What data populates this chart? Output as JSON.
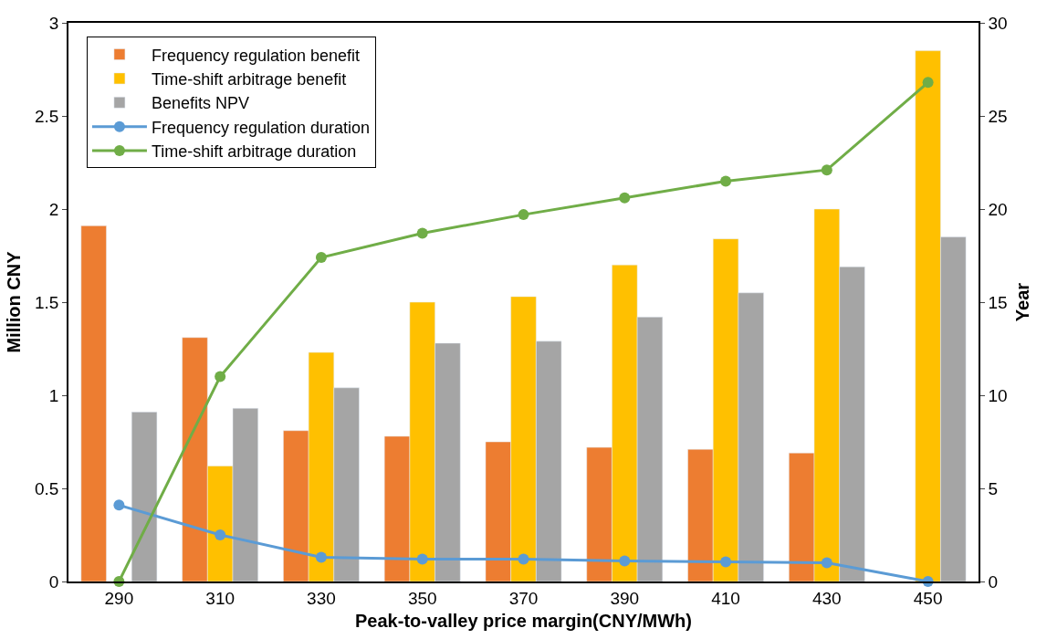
{
  "chart_data": {
    "type": "bar",
    "xlabel": "Peak-to-valley price margin(CNY/MWh)",
    "ylabel": "Million CNY",
    "y2label": "Year",
    "categories": [
      "290",
      "310",
      "330",
      "350",
      "370",
      "390",
      "410",
      "430",
      "450"
    ],
    "series": [
      {
        "name": "Frequency regulation benefit",
        "color": "#ed7d31",
        "values": [
          1.91,
          1.31,
          0.81,
          0.78,
          0.75,
          0.72,
          0.71,
          0.69,
          null
        ]
      },
      {
        "name": "Time-shift arbitrage benefit",
        "color": "#ffc000",
        "values": [
          null,
          0.62,
          1.23,
          1.5,
          1.53,
          1.7,
          1.84,
          2.0,
          2.85
        ]
      },
      {
        "name": "Benefits NPV",
        "color": "#a5a5a5",
        "values": [
          0.91,
          0.93,
          1.04,
          1.28,
          1.29,
          1.42,
          1.55,
          1.69,
          1.85
        ]
      },
      {
        "name": "Frequency regulation duration",
        "color": "#5b9bd5",
        "type": "line",
        "axis": "y2",
        "marker": "circle",
        "values": [
          4.1,
          2.5,
          1.3,
          1.2,
          1.2,
          1.1,
          1.05,
          1.0,
          0
        ]
      },
      {
        "name": "Time-shift arbitrage duration",
        "color": "#70ad47",
        "type": "line",
        "axis": "y2",
        "marker": "circle",
        "values": [
          0,
          11.0,
          17.4,
          18.7,
          19.7,
          20.6,
          21.5,
          22.1,
          26.8
        ]
      }
    ],
    "ylim": [
      0,
      3
    ],
    "yticks": [
      0,
      0.5,
      1,
      1.5,
      2,
      2.5,
      3
    ],
    "y2lim": [
      0,
      30
    ],
    "y2ticks": [
      0,
      5,
      10,
      15,
      20,
      25,
      30
    ],
    "grid": false,
    "legend": "top left"
  }
}
